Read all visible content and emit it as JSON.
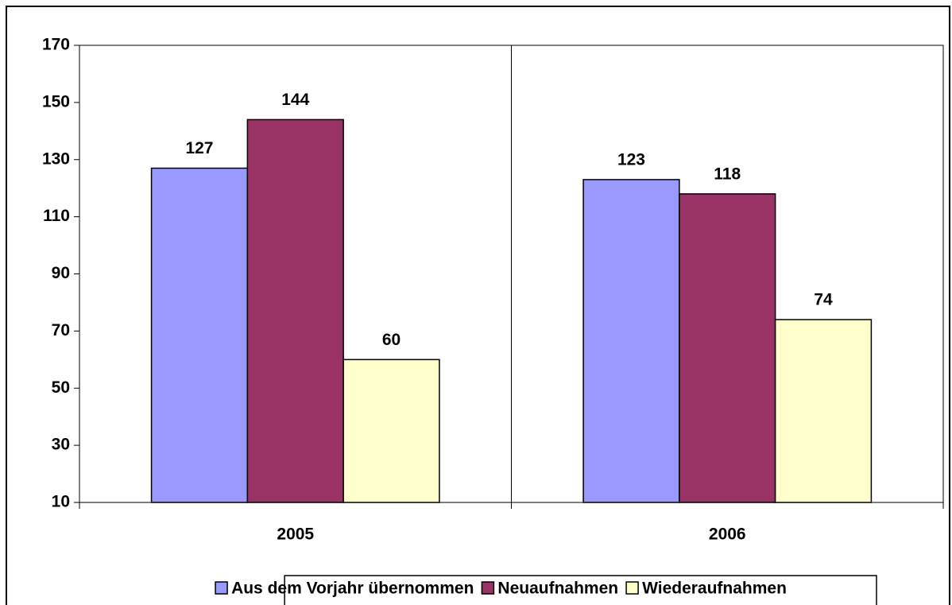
{
  "chart_data": {
    "type": "bar",
    "categories": [
      "2005",
      "2006"
    ],
    "series": [
      {
        "name": "Aus dem Vorjahr übernommen",
        "color": "#9999ff",
        "values": [
          127,
          123
        ]
      },
      {
        "name": "Neuaufnahmen",
        "color": "#993366",
        "values": [
          144,
          118
        ]
      },
      {
        "name": "Wiederaufnahmen",
        "color": "#ffffcc",
        "values": [
          60,
          74
        ]
      }
    ],
    "ylim": [
      10,
      170
    ],
    "yticks": [
      10,
      30,
      50,
      70,
      90,
      110,
      130,
      150,
      170
    ],
    "legend": "bottom"
  }
}
